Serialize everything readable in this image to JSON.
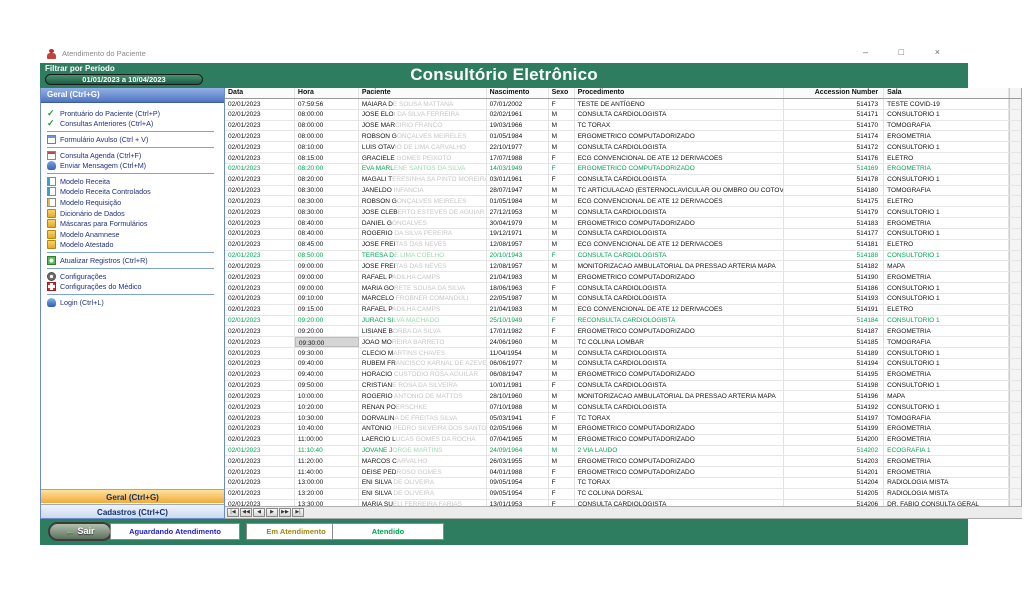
{
  "window": {
    "title": "Atendimento do Paciente",
    "controls": {
      "minimize": "–",
      "maximize": "□",
      "close": "×"
    }
  },
  "header": {
    "filter_label": "Filtrar por Período",
    "date_range": "01/01/2023 a 10/04/2023",
    "title": "Consultório Eletrônico"
  },
  "sidebar": {
    "top_header": "Geral (Ctrl+G)",
    "items": [
      {
        "icon": "check",
        "label": "Prontuário do Paciente (Ctrl+P)"
      },
      {
        "icon": "check",
        "label": "Consultas Anteriores (Ctrl+A)",
        "sep": true
      },
      {
        "icon": "form",
        "label": "Formulário Avulso (Ctrl + V)",
        "sep": true
      },
      {
        "icon": "calendar",
        "label": "Consulta Agenda (Ctrl+F)"
      },
      {
        "icon": "person",
        "label": "Enviar Mensagem (Ctrl+M)",
        "sep": true
      },
      {
        "icon": "doc",
        "label": "Modelo Receita"
      },
      {
        "icon": "doc",
        "label": "Modelo Receita Controlados"
      },
      {
        "icon": "doc2",
        "label": "Modelo Requisição"
      },
      {
        "icon": "folder",
        "label": "Dicionário de Dados"
      },
      {
        "icon": "folder",
        "label": "Máscaras para Formulários"
      },
      {
        "icon": "folder",
        "label": "Modelo Anamnese"
      },
      {
        "icon": "folder",
        "label": "Modelo Atestado",
        "sep": true
      },
      {
        "icon": "refresh",
        "label": "Atualizar Registros (Ctrl+R)",
        "sep": true
      },
      {
        "icon": "gear",
        "label": "Configurações"
      },
      {
        "icon": "cross",
        "label": "Configurações do Médico",
        "sep": true
      },
      {
        "icon": "login",
        "label": "Login (Ctrl+L)"
      }
    ],
    "bottom_tabs": [
      {
        "label": "Geral (Ctrl+G)"
      },
      {
        "label": "Cadastros (Ctrl+C)"
      }
    ]
  },
  "table": {
    "columns": [
      "Data",
      "Hora",
      "Paciente",
      "Nascimento",
      "Sexo",
      "Procedimento",
      "Accession Number",
      "Sala"
    ],
    "date_all": "02/01/2023",
    "focused_row": 22,
    "rows": [
      [
        "07:59:56",
        "MAIARA D",
        "E SOUSA MATTANA",
        "07/01/2002",
        "F",
        "TESTE DE ANTÍGENO",
        "514173",
        "TESTE COVID-19",
        0
      ],
      [
        "08:00:00",
        "JOSE ELO",
        "I DA SILVA FERREIRA",
        "02/02/1961",
        "M",
        "CONSULTA CARDIOLOGISTA",
        "514171",
        "CONSULTORIO 1",
        0
      ],
      [
        "08:00:00",
        "JOSE MAR",
        "CIRIO FRANCO",
        "19/03/1966",
        "M",
        "TC TORAX",
        "514170",
        "TOMOGRAFIA",
        0
      ],
      [
        "08:00:00",
        "ROBSON G",
        "ONÇALVES MEIRELES",
        "01/05/1984",
        "M",
        "ERGOMETRICO COMPUTADORIZADO",
        "514174",
        "ERGOMETRIA",
        0
      ],
      [
        "08:10:00",
        "LUIS OTAV",
        "IO DE LIMA CARVALHO",
        "22/10/1977",
        "M",
        "CONSULTA CARDIOLOGISTA",
        "514172",
        "CONSULTORIO 1",
        0
      ],
      [
        "08:15:00",
        "GRACIELE",
        " GOMES PEIXOTO",
        "17/07/1988",
        "F",
        "ECG CONVENCIONAL DE ATE 12 DERIVACOES",
        "514176",
        "ELETRO",
        0
      ],
      [
        "08:20:00",
        "EVA MARL",
        "ENE SANTOS DA SILVA",
        "14/03/1949",
        "F",
        "ERGOMETRICO COMPUTADORIZADO",
        "514169",
        "ERGOMETRIA",
        1
      ],
      [
        "08:20:00",
        "MAGALI T",
        "ERESINHA SA PINTO MOREIRA",
        "03/01/1961",
        "F",
        "CONSULTA CARDIOLOGISTA",
        "514178",
        "CONSULTORIO 1",
        0
      ],
      [
        "08:30:00",
        "JANELDO",
        " INFANCIA",
        "28/07/1947",
        "M",
        "TC ARTICULACAO (ESTERNOCLAVICULAR OU OMBRO OU COTOVELO OU P",
        "514180",
        "TOMOGRAFIA",
        0
      ],
      [
        "08:30:00",
        "ROBSON G",
        "ONÇALVES MEIRELES",
        "01/05/1984",
        "M",
        "ECG CONVENCIONAL DE ATE 12 DERIVACOES",
        "514175",
        "ELETRO",
        0
      ],
      [
        "08:30:00",
        "JOSE CLEB",
        "ERTO ESTEVES DE AGUIAR",
        "27/12/1953",
        "M",
        "CONSULTA CARDIOLOGISTA",
        "514179",
        "CONSULTORIO 1",
        0
      ],
      [
        "08:40:00",
        "DANIEL G",
        "ONCALVES",
        "30/04/1979",
        "M",
        "ERGOMETRICO COMPUTADORIZADO",
        "514183",
        "ERGOMETRIA",
        0
      ],
      [
        "08:40:00",
        "ROGERIO",
        " DA SILVA PEREIRA",
        "19/12/1971",
        "M",
        "CONSULTA CARDIOLOGISTA",
        "514177",
        "CONSULTORIO 1",
        0
      ],
      [
        "08:45:00",
        "JOSE FREI",
        "TAS DAS NEVES",
        "12/08/1957",
        "M",
        "ECG CONVENCIONAL DE ATE 12 DERIVACOES",
        "514181",
        "ELETRO",
        0
      ],
      [
        "08:50:00",
        "TERESA D",
        "E LIMA COELHO",
        "20/10/1943",
        "F",
        "CONSULTA CARDIOLOGISTA",
        "514188",
        "CONSULTORIO 1",
        1
      ],
      [
        "09:00:00",
        "JOSE FREI",
        "TAS DAS NEVES",
        "12/08/1957",
        "M",
        "MONITORIZACAO AMBULATORIAL DA PRESSAO ARTERIA MAPA",
        "514182",
        "MAPA",
        0
      ],
      [
        "09:00:00",
        "RAFAEL P",
        "ADILHA CAMPS",
        "21/04/1983",
        "M",
        "ERGOMETRICO COMPUTADORIZADO",
        "514190",
        "ERGOMETRIA",
        0
      ],
      [
        "09:00:00",
        "MARIA GO",
        "RETE SOUSA DA SILVA",
        "18/06/1963",
        "F",
        "CONSULTA CARDIOLOGISTA",
        "514186",
        "CONSULTORIO 1",
        0
      ],
      [
        "09:10:00",
        "MARCELO",
        " FROBNER COMANDULI",
        "22/05/1987",
        "M",
        "CONSULTA CARDIOLOGISTA",
        "514193",
        "CONSULTORIO 1",
        0
      ],
      [
        "09:15:00",
        "RAFAEL P",
        "ADILHA CAMPS",
        "21/04/1983",
        "M",
        "ECG CONVENCIONAL DE ATE 12 DERIVACOES",
        "514191",
        "ELETRO",
        0
      ],
      [
        "09:20:00",
        "JURACI SI",
        "LVA MACHADO",
        "25/10/1949",
        "F",
        "RECONSULTA CARDIOLOGISTA",
        "514184",
        "CONSULTORIO 1",
        1
      ],
      [
        "09:20:00",
        "LISIANE B",
        "ORBA DA SILVA",
        "17/01/1982",
        "F",
        "ERGOMETRICO COMPUTADORIZADO",
        "514187",
        "ERGOMETRIA",
        0
      ],
      [
        "09:30:00",
        "JOAO MO",
        "REIRA BARRETO",
        "24/06/1960",
        "M",
        "TC COLUNA LOMBAR",
        "514185",
        "TOMOGRAFIA",
        0
      ],
      [
        "09:30:00",
        "CLECIO M",
        "ARTINS CHAVES",
        "11/04/1954",
        "M",
        "CONSULTA CARDIOLOGISTA",
        "514189",
        "CONSULTORIO 1",
        0
      ],
      [
        "09:40:00",
        "RUBEM FR",
        "ANCISCO KARNAL DE AZEVEDO FILHO",
        "06/06/1977",
        "M",
        "CONSULTA CARDIOLOGISTA",
        "514194",
        "CONSULTORIO 1",
        0
      ],
      [
        "09:40:00",
        "HORACIO",
        " CUSTODIO ROSA AGUILAR",
        "06/08/1947",
        "M",
        "ERGOMETRICO COMPUTADORIZADO",
        "514195",
        "ERGOMETRIA",
        0
      ],
      [
        "09:50:00",
        "CRISTIAN",
        "E ROSA DA SILVEIRA",
        "10/01/1981",
        "F",
        "CONSULTA CARDIOLOGISTA",
        "514198",
        "CONSULTORIO 1",
        0
      ],
      [
        "10:00:00",
        "ROGERIO",
        " ANTONIO DE MATTOS",
        "28/10/1960",
        "M",
        "MONITORIZACAO AMBULATORIAL DA PRESSAO ARTERIA MAPA",
        "514196",
        "MAPA",
        0
      ],
      [
        "10:20:00",
        "RENAN PO",
        "ERSCHKE",
        "07/10/1988",
        "M",
        "CONSULTA CARDIOLOGISTA",
        "514192",
        "CONSULTORIO 1",
        0
      ],
      [
        "10:30:00",
        "DORVALIN",
        "A DE FREITAS SILVA",
        "05/03/1941",
        "F",
        "TC TORAX",
        "514197",
        "TOMOGRAFIA",
        0
      ],
      [
        "10:40:00",
        "ANTONIO",
        " PEDRO SILVEIRA DOS SANTOS",
        "02/05/1966",
        "M",
        "ERGOMETRICO COMPUTADORIZADO",
        "514199",
        "ERGOMETRIA",
        0
      ],
      [
        "11:00:00",
        "LAERCIO L",
        "UCAS GOMES DA ROCHA",
        "07/04/1965",
        "M",
        "ERGOMETRICO COMPUTADORIZADO",
        "514200",
        "ERGOMETRIA",
        0
      ],
      [
        "11:10:40",
        "JOVANE J",
        "ORGE MARTINS",
        "24/09/1964",
        "M",
        "2 VIA LAUDO",
        "514202",
        "ECOGRAFIA 1",
        1
      ],
      [
        "11:20:00",
        "MARCOS C",
        "ARVALHO",
        "26/03/1955",
        "M",
        "ERGOMETRICO COMPUTADORIZADO",
        "514203",
        "ERGOMETRIA",
        0
      ],
      [
        "11:40:00",
        "DEISE PED",
        "ROSO GOMES",
        "04/01/1988",
        "F",
        "ERGOMETRICO COMPUTADORIZADO",
        "514201",
        "ERGOMETRIA",
        0
      ],
      [
        "13:00:00",
        "ENI SILVA",
        " DE OLIVEIRA",
        "09/05/1954",
        "F",
        "TC TORAX",
        "514204",
        "RADIOLOGIA MISTA",
        0
      ],
      [
        "13:20:00",
        "ENI SILVA",
        " DE OLIVEIRA",
        "09/05/1954",
        "F",
        "TC COLUNA DORSAL",
        "514205",
        "RADIOLOGIA MISTA",
        0
      ]
    ],
    "partial_row": [
      "13:30:00",
      "MARIA SU",
      "ELI FERREIRA FARIAS",
      "13/01/1953",
      "F",
      "CONSULTA CARDIOLOGISTA",
      "514206",
      "DR. FABIO CONSULTA GERAL",
      0
    ],
    "pager": [
      "|◀",
      "◀◀",
      "◀",
      "▶",
      "▶▶",
      "▶|"
    ]
  },
  "footer": {
    "exit_label": "Sair",
    "exit_arrow": "←",
    "statuses": [
      {
        "label": "Aguardando Atendimento",
        "color": "#2222cc"
      },
      {
        "label": "Em Atendimento",
        "color": "#9a8a10"
      },
      {
        "label": "Atendido",
        "color": "#00a651"
      }
    ]
  },
  "colors": {
    "band_green": "#2e7d61",
    "row_green": "#00a651",
    "name_faded": "#c6c6c6"
  }
}
